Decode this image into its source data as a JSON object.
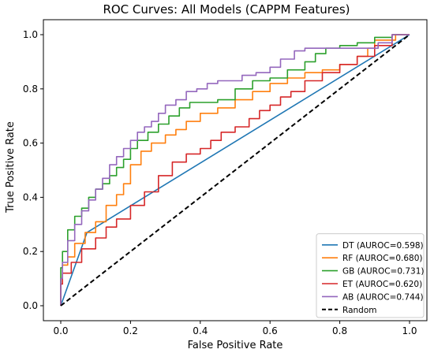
{
  "chart_data": {
    "type": "line",
    "title": "ROC Curves: All Models (CAPPM Features)",
    "xlabel": "False Positive Rate",
    "ylabel": "True Positive Rate",
    "xlim": [
      0,
      1
    ],
    "ylim": [
      0,
      1
    ],
    "x_ticks": [
      "0.0",
      "0.2",
      "0.4",
      "0.6",
      "0.8",
      "1.0"
    ],
    "y_ticks": [
      "0.0",
      "0.2",
      "0.4",
      "0.6",
      "0.8",
      "1.0"
    ],
    "grid": false,
    "legend_position": "lower-right",
    "series": [
      {
        "name": "DT (AUROC=0.598)",
        "color": "#1f77b4",
        "dash": "solid",
        "x": [
          0,
          0.075,
          1.0
        ],
        "y": [
          0,
          0.27,
          1.0
        ]
      },
      {
        "name": "RF (AUROC=0.680)",
        "color": "#ff7f0e",
        "dash": "solid",
        "x": [
          0,
          0.005,
          0.02,
          0.04,
          0.07,
          0.1,
          0.13,
          0.16,
          0.18,
          0.2,
          0.23,
          0.26,
          0.3,
          0.33,
          0.36,
          0.4,
          0.45,
          0.5,
          0.55,
          0.6,
          0.65,
          0.7,
          0.75,
          0.8,
          0.85,
          0.88,
          0.9,
          0.93,
          0.96,
          1.0
        ],
        "y": [
          0,
          0.1,
          0.15,
          0.18,
          0.23,
          0.27,
          0.31,
          0.37,
          0.41,
          0.45,
          0.52,
          0.57,
          0.6,
          0.63,
          0.65,
          0.68,
          0.71,
          0.73,
          0.76,
          0.79,
          0.82,
          0.84,
          0.86,
          0.87,
          0.89,
          0.92,
          0.95,
          0.98,
          0.98,
          1.0
        ]
      },
      {
        "name": "GB (AUROC=0.731)",
        "color": "#2ca02c",
        "dash": "solid",
        "x": [
          0,
          0.005,
          0.02,
          0.04,
          0.06,
          0.08,
          0.1,
          0.12,
          0.14,
          0.16,
          0.18,
          0.2,
          0.22,
          0.25,
          0.28,
          0.31,
          0.34,
          0.37,
          0.4,
          0.45,
          0.5,
          0.55,
          0.6,
          0.65,
          0.7,
          0.73,
          0.76,
          0.8,
          0.85,
          0.9,
          0.95,
          1.0
        ],
        "y": [
          0,
          0.14,
          0.2,
          0.28,
          0.33,
          0.36,
          0.4,
          0.43,
          0.45,
          0.48,
          0.51,
          0.54,
          0.58,
          0.61,
          0.64,
          0.67,
          0.7,
          0.73,
          0.75,
          0.75,
          0.76,
          0.8,
          0.83,
          0.84,
          0.87,
          0.9,
          0.93,
          0.95,
          0.96,
          0.97,
          0.99,
          1.0
        ]
      },
      {
        "name": "ET (AUROC=0.620)",
        "color": "#d62728",
        "dash": "solid",
        "x": [
          0,
          0.005,
          0.03,
          0.06,
          0.1,
          0.13,
          0.16,
          0.2,
          0.24,
          0.28,
          0.32,
          0.36,
          0.4,
          0.43,
          0.46,
          0.5,
          0.54,
          0.57,
          0.6,
          0.63,
          0.66,
          0.7,
          0.75,
          0.8,
          0.85,
          0.9,
          0.95,
          1.0
        ],
        "y": [
          0,
          0.08,
          0.12,
          0.16,
          0.21,
          0.25,
          0.29,
          0.32,
          0.37,
          0.42,
          0.48,
          0.53,
          0.56,
          0.58,
          0.61,
          0.64,
          0.66,
          0.69,
          0.72,
          0.74,
          0.77,
          0.79,
          0.83,
          0.86,
          0.89,
          0.92,
          0.96,
          1.0
        ]
      },
      {
        "name": "AB (AUROC=0.744)",
        "color": "#9467bd",
        "dash": "solid",
        "x": [
          0,
          0.005,
          0.02,
          0.04,
          0.06,
          0.08,
          0.1,
          0.12,
          0.14,
          0.16,
          0.18,
          0.2,
          0.22,
          0.24,
          0.26,
          0.28,
          0.3,
          0.33,
          0.36,
          0.39,
          0.42,
          0.45,
          0.48,
          0.52,
          0.56,
          0.6,
          0.63,
          0.67,
          0.7,
          0.74,
          0.77,
          0.8,
          0.85,
          0.88,
          0.91,
          0.95,
          1.0
        ],
        "y": [
          0,
          0.1,
          0.16,
          0.24,
          0.3,
          0.35,
          0.39,
          0.43,
          0.47,
          0.52,
          0.55,
          0.58,
          0.61,
          0.64,
          0.66,
          0.68,
          0.71,
          0.74,
          0.76,
          0.79,
          0.8,
          0.82,
          0.83,
          0.83,
          0.85,
          0.86,
          0.88,
          0.91,
          0.94,
          0.95,
          0.95,
          0.95,
          0.95,
          0.95,
          0.95,
          0.97,
          1.0
        ]
      },
      {
        "name": "Random",
        "color": "#000000",
        "dash": "dashed",
        "x": [
          0,
          1
        ],
        "y": [
          0,
          1
        ]
      }
    ]
  }
}
